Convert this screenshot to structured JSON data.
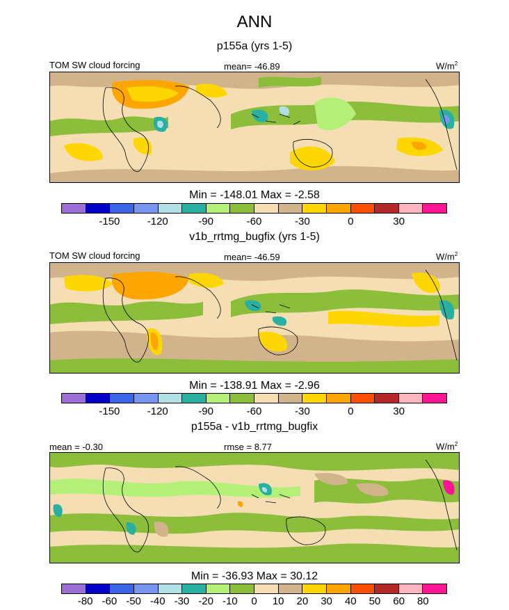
{
  "season": "ANN",
  "palette_abs": [
    "#9b6fd3",
    "#0000c8",
    "#3c64e6",
    "#7896f0",
    "#b0e0e6",
    "#2ab0a0",
    "#b4f078",
    "#8cbe3c",
    "#f5deb3",
    "#d2b48c",
    "#ffd700",
    "#ffa500",
    "#ff5000",
    "#b42828",
    "#ffb6c1",
    "#ff1493"
  ],
  "palette_diff": [
    "#9b6fd3",
    "#0000c8",
    "#3c64e6",
    "#7896f0",
    "#b0e0e6",
    "#2ab0a0",
    "#b4f078",
    "#8cbe3c",
    "#f5deb3",
    "#d2b48c",
    "#ffd700",
    "#ffa500",
    "#ff5000",
    "#b42828",
    "#ffb6c1",
    "#ff1493"
  ],
  "panels": [
    {
      "subtitle": "p155a (yrs 1-5)",
      "left_label": "TOM SW cloud forcing",
      "center_label": "mean= -46.89",
      "units_base": "W/m",
      "units_sup": "2",
      "stats": "Min = -148.01 Max =  -2.58",
      "ticks": [
        "-150",
        "-120",
        "-90",
        "-60",
        "-30",
        "0",
        "30"
      ]
    },
    {
      "subtitle": "v1b_rrtmg_bugfix (yrs 1-5)",
      "left_label": "TOM SW cloud forcing",
      "center_label": "mean= -46.59",
      "units_base": "W/m",
      "units_sup": "2",
      "stats": "Min = -138.91 Max =  -2.96",
      "ticks": [
        "-150",
        "-120",
        "-90",
        "-60",
        "-30",
        "0",
        "30"
      ]
    },
    {
      "subtitle": "p155a - v1b_rrtmg_bugfix",
      "left_label": "mean =  -0.30",
      "center_label": "rmse =   8.77",
      "units_base": "W/m",
      "units_sup": "2",
      "stats": "Min = -36.93 Max =  30.12",
      "ticks": [
        "-80",
        "-60",
        "-50",
        "-40",
        "-30",
        "-20",
        "-10",
        "0",
        "10",
        "20",
        "30",
        "40",
        "50",
        "60",
        "80"
      ]
    }
  ]
}
